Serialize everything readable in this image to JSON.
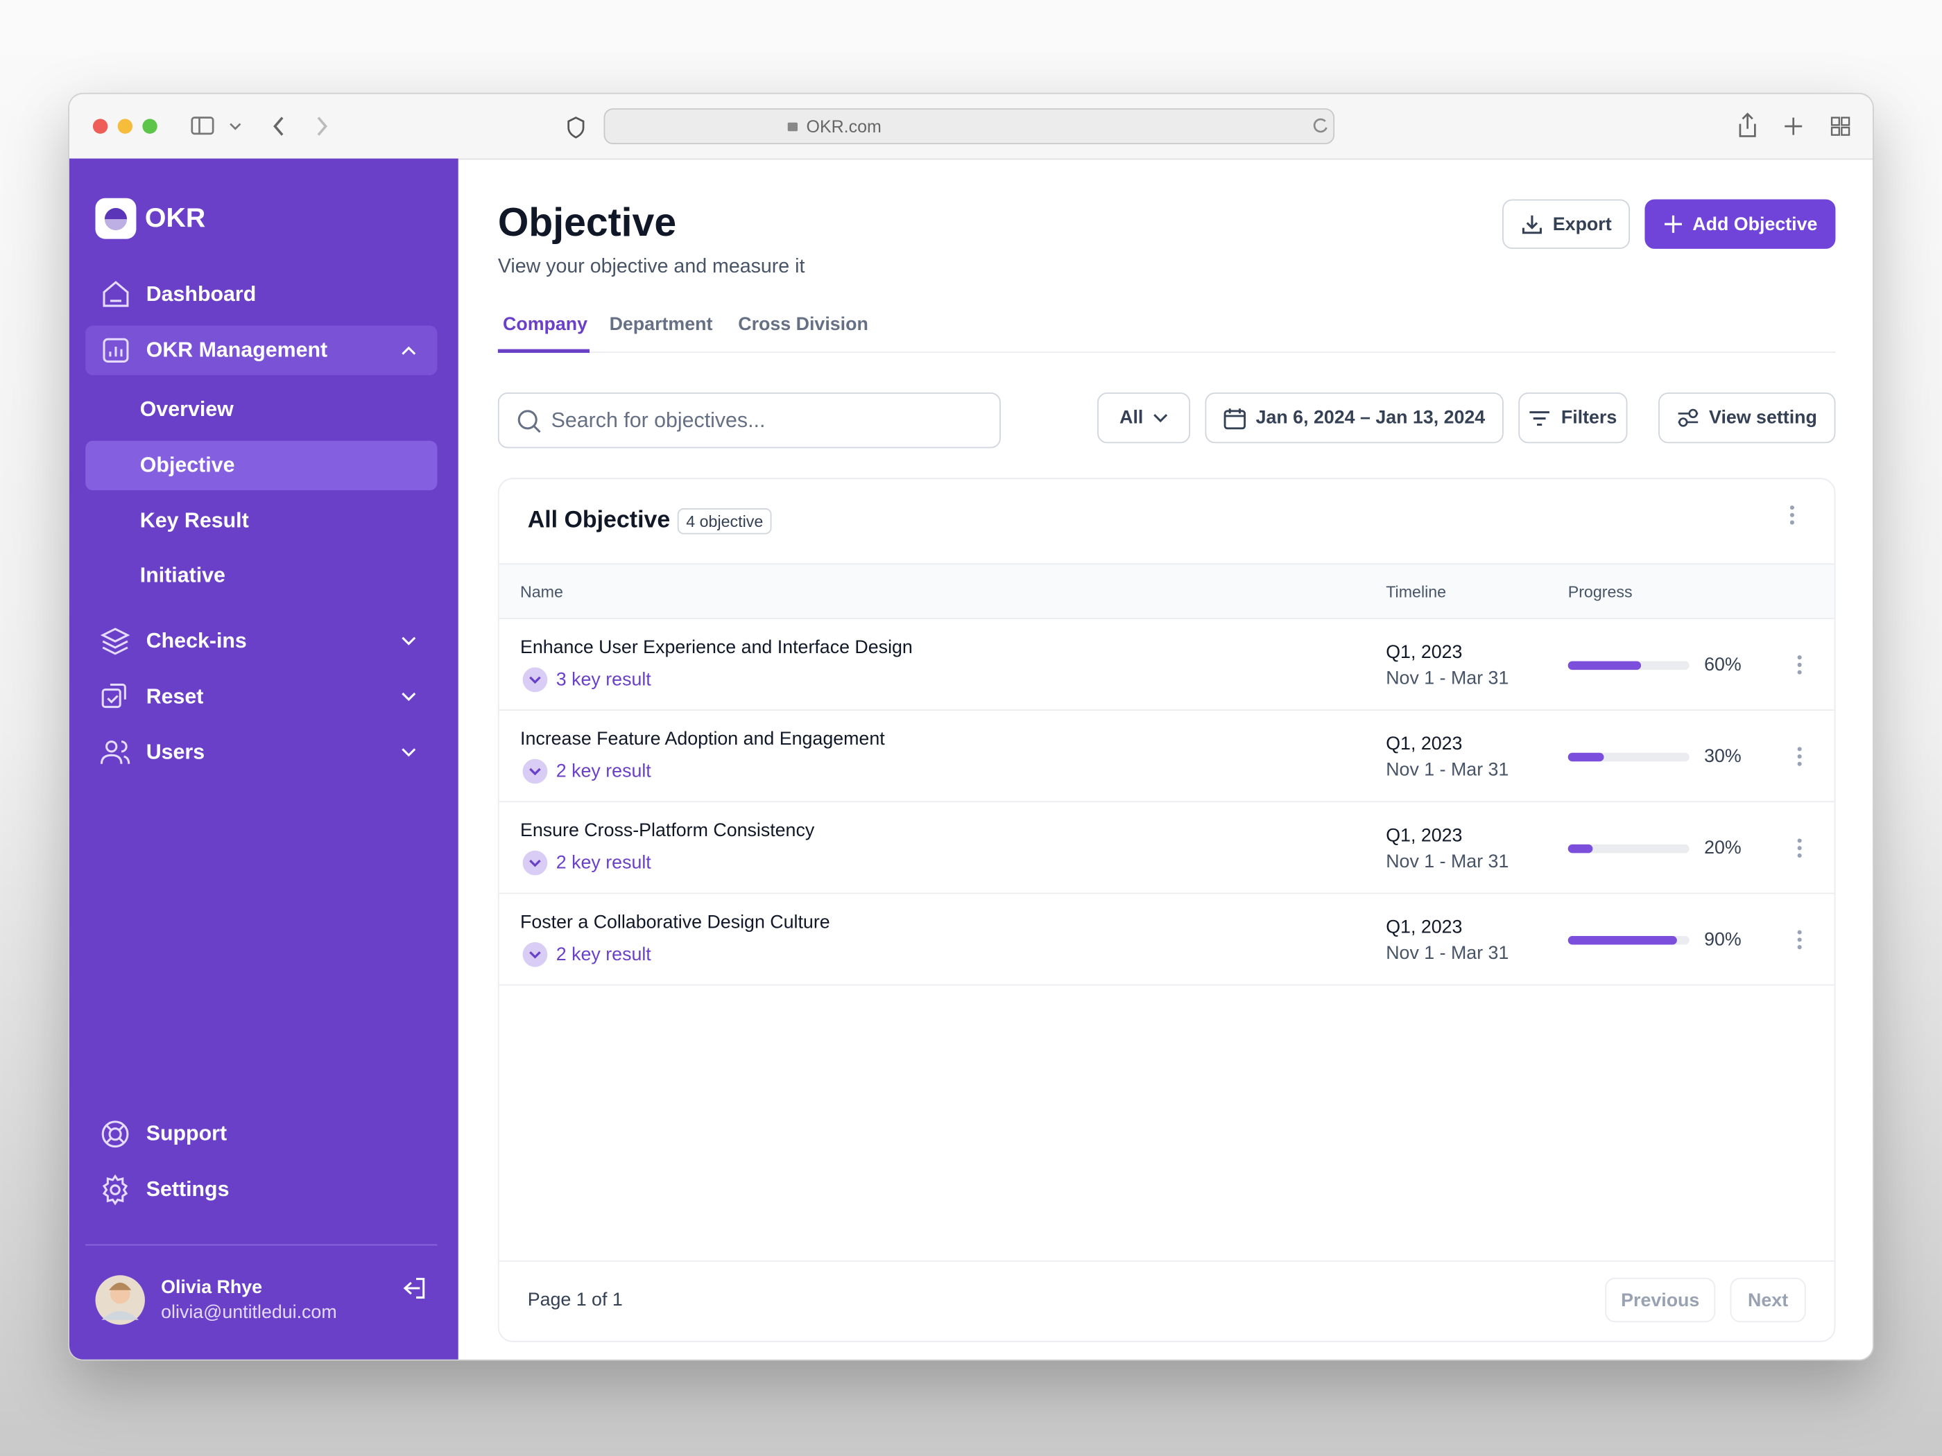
{
  "browser": {
    "url": "OKR.com"
  },
  "sidebar": {
    "brand": "OKR",
    "nav": [
      "Dashboard",
      "OKR Management"
    ],
    "sub_nav": [
      "Overview",
      "Objective",
      "Key Result",
      "Initiative"
    ],
    "more_nav": [
      "Check-ins",
      "Reset",
      "Users"
    ],
    "footer_nav": [
      "Support",
      "Settings"
    ],
    "user": {
      "name": "Olivia Rhye",
      "email": "olivia@untitledui.com"
    }
  },
  "header": {
    "title": "Objective",
    "subtitle": "View your objective and measure it",
    "export": "Export",
    "add": "Add Objective"
  },
  "tabs": [
    "Company",
    "Department",
    "Cross Division"
  ],
  "toolbar": {
    "search": "Search for objectives...",
    "all": "All",
    "date_range": "Jan 6, 2024 – Jan 13, 2024",
    "filters": "Filters",
    "view_setting": "View setting"
  },
  "table": {
    "title": "All Objective",
    "badge": "4 objective",
    "columns": [
      "Name",
      "Timeline",
      "Progress"
    ],
    "rows": [
      {
        "name": "Enhance User Experience and Interface Design",
        "key_results": "3 key result",
        "quarter": "Q1, 2023",
        "dates": "Nov 1 - Mar 31",
        "progress": 60,
        "progress_label": "60%"
      },
      {
        "name": "Increase Feature Adoption and Engagement",
        "key_results": "2 key result",
        "quarter": "Q1, 2023",
        "dates": "Nov 1 - Mar 31",
        "progress": 30,
        "progress_label": "30%"
      },
      {
        "name": "Ensure Cross-Platform Consistency",
        "key_results": "2 key result",
        "quarter": "Q1, 2023",
        "dates": "Nov 1 - Mar 31",
        "progress": 20,
        "progress_label": "20%"
      },
      {
        "name": "Foster a Collaborative Design Culture",
        "key_results": "2 key result",
        "quarter": "Q1, 2023",
        "dates": "Nov 1 - Mar 31",
        "progress": 90,
        "progress_label": "90%"
      }
    ]
  },
  "pagination": {
    "page": "Page 1 of 1",
    "previous": "Previous",
    "next": "Next"
  }
}
